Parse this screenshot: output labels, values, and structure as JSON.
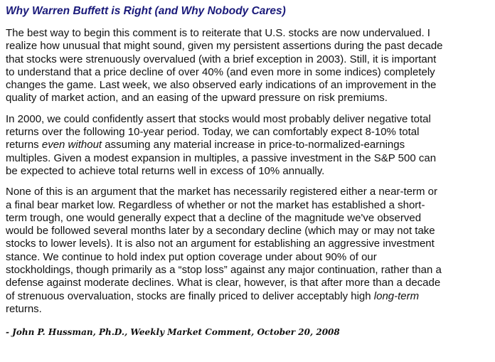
{
  "title": "Why Warren Buffett is Right (and Why Nobody Cares)",
  "paragraphs": [
    {
      "lines": [
        [
          {
            "t": "The best way to begin this comment is to reiterate that U.S. stocks are now undervalued. I"
          }
        ],
        [
          {
            "t": "realize how unusual that might sound, given my persistent assertions during the past decade"
          }
        ],
        [
          {
            "t": "that stocks were strenuously overvalued (with a brief exception in 2003). Still, it is important"
          }
        ],
        [
          {
            "t": "to understand that a price decline of over 40% (and even more in some indices) completely"
          }
        ],
        [
          {
            "t": "changes the game. Last week, we also observed early indications of an improvement in the"
          }
        ],
        [
          {
            "t": "quality of market action, and an easing of the upward pressure on risk premiums."
          }
        ]
      ]
    },
    {
      "lines": [
        [
          {
            "t": "In 2000, we could confidently assert that stocks would most probably deliver negative total"
          }
        ],
        [
          {
            "t": "returns over the following 10-year period. Today, we can comfortably expect 8-10% total"
          }
        ],
        [
          {
            "t": "returns "
          },
          {
            "t": "even without",
            "em": true
          },
          {
            "t": " assuming any material increase in price-to-normalized-earnings"
          }
        ],
        [
          {
            "t": "multiples. Given a modest expansion in multiples, a passive investment in the S&P 500 can"
          }
        ],
        [
          {
            "t": "be expected to achieve total returns well in excess of 10% annually."
          }
        ]
      ]
    },
    {
      "lines": [
        [
          {
            "t": "None of this is an argument that the market has necessarily registered either a near-term or"
          }
        ],
        [
          {
            "t": "a final bear market low. Regardless of whether or not the market has established a short-"
          }
        ],
        [
          {
            "t": "term trough, one would generally expect that a decline of the magnitude we've observed"
          }
        ],
        [
          {
            "t": "would be followed several months later by a secondary decline (which may or may not take"
          }
        ],
        [
          {
            "t": "stocks to lower levels). It is also not an argument for establishing an aggressive investment"
          }
        ],
        [
          {
            "t": "stance. We continue to hold index put option coverage under about 90% of our"
          }
        ],
        [
          {
            "t": "stockholdings, though primarily as a “stop loss” against any major continuation, rather than a"
          }
        ],
        [
          {
            "t": "defense against moderate declines. What is clear, however, is that after more than a decade"
          }
        ],
        [
          {
            "t": "of strenuous overvaluation, stocks are finally priced to deliver acceptably high "
          },
          {
            "t": "long-term",
            "em": true
          }
        ],
        [
          {
            "t": "returns."
          }
        ]
      ]
    }
  ],
  "attribution": "- John P. Hussman, Ph.D., Weekly Market Comment, October 20, 2008",
  "colors": {
    "title": "#1a1a7a",
    "body": "#111111",
    "background": "#ffffff"
  }
}
